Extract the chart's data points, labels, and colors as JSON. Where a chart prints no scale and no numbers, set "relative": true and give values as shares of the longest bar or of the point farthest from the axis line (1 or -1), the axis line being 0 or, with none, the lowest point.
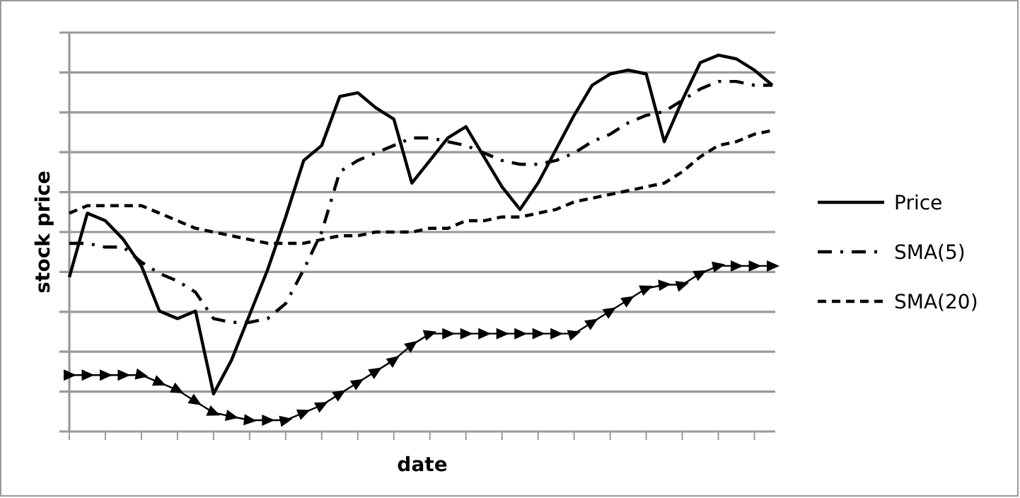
{
  "chart_data": {
    "type": "line",
    "relative": true,
    "xlabel": "date",
    "ylabel": "stock price",
    "categories": [
      null,
      null,
      null,
      null,
      null,
      null,
      null,
      null,
      null,
      null,
      null,
      null,
      null,
      null,
      null,
      null,
      null,
      null,
      null,
      null,
      null,
      null,
      null,
      null,
      null,
      null,
      null,
      null,
      null,
      null,
      null,
      null,
      null,
      null,
      null,
      null,
      null,
      null,
      null,
      null
    ],
    "grid": "y",
    "legend": "right",
    "series": [
      {
        "name": "Price",
        "color": "#000000",
        "line_style": "solid",
        "marker": "none",
        "values": [
          0.41,
          0.58,
          0.56,
          0.51,
          0.44,
          0.32,
          0.3,
          0.32,
          0.1,
          0.19,
          0.31,
          0.43,
          0.57,
          0.72,
          0.76,
          0.89,
          0.9,
          0.86,
          0.83,
          0.66,
          0.72,
          0.78,
          0.81,
          0.73,
          0.65,
          0.59,
          0.66,
          0.75,
          0.84,
          0.92,
          0.95,
          0.96,
          0.95,
          0.77,
          0.88,
          0.98,
          1,
          0.99,
          0.96,
          0.92
        ]
      },
      {
        "name": "SMA(5)",
        "color": "#000000",
        "line_style": "dashdot",
        "marker": "none",
        "values": [
          0.5,
          0.5,
          0.49,
          0.49,
          0.45,
          0.42,
          0.4,
          0.37,
          0.3,
          0.29,
          0.29,
          0.3,
          0.34,
          0.43,
          0.53,
          0.69,
          0.72,
          0.74,
          0.76,
          0.78,
          0.78,
          0.77,
          0.76,
          0.74,
          0.72,
          0.71,
          0.71,
          0.72,
          0.74,
          0.77,
          0.79,
          0.82,
          0.84,
          0.85,
          0.88,
          0.91,
          0.93,
          0.93,
          0.92,
          0.92
        ]
      },
      {
        "name": "SMA(20)",
        "color": "#000000",
        "line_style": "dashed",
        "marker": "none",
        "values": [
          0.58,
          0.6,
          0.6,
          0.6,
          0.6,
          0.58,
          0.56,
          0.54,
          0.53,
          0.52,
          0.51,
          0.5,
          0.5,
          0.5,
          0.51,
          0.52,
          0.52,
          0.53,
          0.53,
          0.53,
          0.54,
          0.54,
          0.56,
          0.56,
          0.57,
          0.57,
          0.58,
          0.59,
          0.61,
          0.62,
          0.63,
          0.64,
          0.65,
          0.66,
          0.69,
          0.73,
          0.76,
          0.77,
          0.79,
          0.8
        ]
      },
      {
        "color": "#000000",
        "line_style": "solid",
        "marker": "triangle",
        "values": [
          0.15,
          0.15,
          0.15,
          0.15,
          0.15,
          0.13,
          0.11,
          0.08,
          0.05,
          0.04,
          0.03,
          0.03,
          0.03,
          0.05,
          0.07,
          0.1,
          0.13,
          0.16,
          0.19,
          0.23,
          0.26,
          0.26,
          0.26,
          0.26,
          0.26,
          0.26,
          0.26,
          0.26,
          0.26,
          0.29,
          0.32,
          0.35,
          0.38,
          0.39,
          0.39,
          0.42,
          0.44,
          0.44,
          0.44,
          0.44
        ]
      }
    ]
  }
}
